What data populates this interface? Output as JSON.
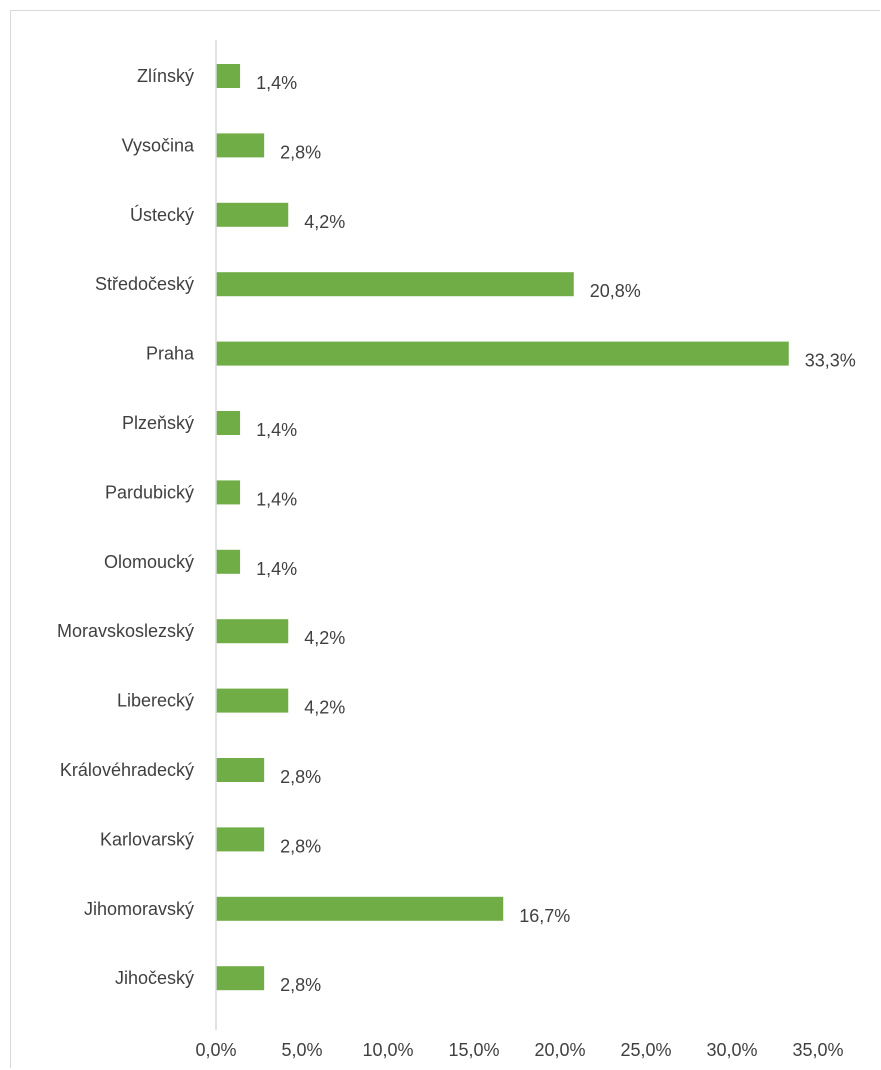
{
  "chart_data": {
    "type": "bar",
    "orientation": "horizontal",
    "title": "",
    "xlabel": "",
    "ylabel": "",
    "categories": [
      "Zlínský",
      "Vysočina",
      "Ústecký",
      "Středočeský",
      "Praha",
      "Plzeňský",
      "Pardubický",
      "Olomoucký",
      "Moravskoslezský",
      "Liberecký",
      "Královéhradecký",
      "Karlovarský",
      "Jihomoravský",
      "Jihočeský"
    ],
    "values": [
      1.4,
      2.8,
      4.2,
      20.8,
      33.3,
      1.4,
      1.4,
      1.4,
      4.2,
      4.2,
      2.8,
      2.8,
      16.7,
      2.8
    ],
    "data_labels": [
      "1,4%",
      "2,8%",
      "4,2%",
      "20,8%",
      "33,3%",
      "1,4%",
      "1,4%",
      "1,4%",
      "4,2%",
      "4,2%",
      "2,8%",
      "2,8%",
      "16,7%",
      "2,8%"
    ],
    "xlim": [
      0,
      35
    ],
    "x_ticks": [
      0,
      5,
      10,
      15,
      20,
      25,
      30,
      35
    ],
    "x_tick_labels": [
      "0,0%",
      "5,0%",
      "10,0%",
      "15,0%",
      "20,0%",
      "25,0%",
      "30,0%",
      "35,0%"
    ],
    "grid": false,
    "legend": "none",
    "bar_color": "#70ad47",
    "axis_color": "#d9d9d9",
    "text_color": "#404040"
  }
}
